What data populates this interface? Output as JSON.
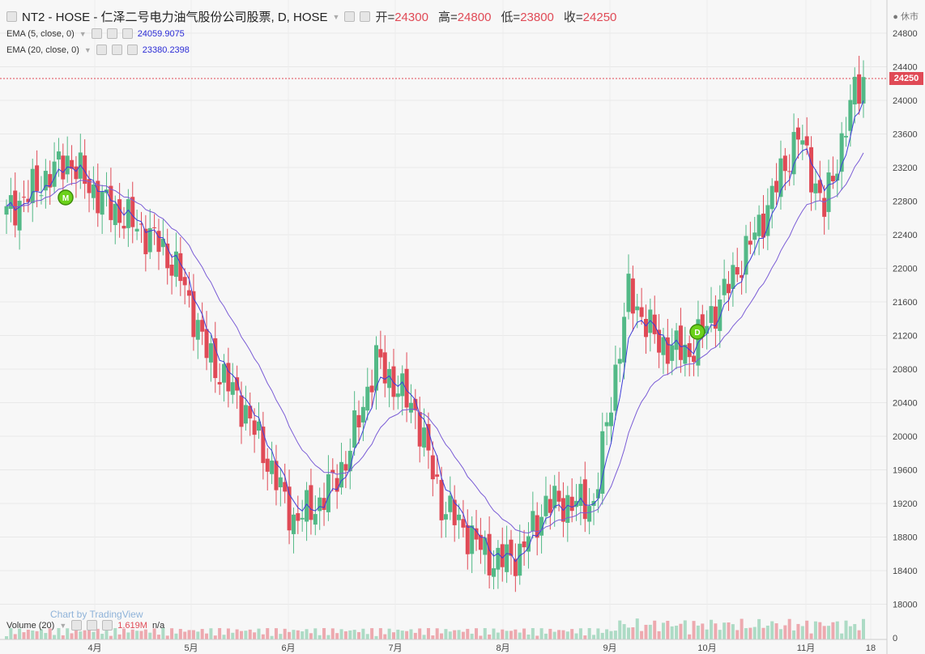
{
  "title": {
    "symbol": "NT2 - HOSE - 仁泽二号电力油气股份公司股票, D, HOSE",
    "open_label": "开=",
    "open": "24300",
    "high_label": "高=",
    "high": "24800",
    "low_label": "低=",
    "low": "23800",
    "close_label": "收=",
    "close": "24250"
  },
  "status_text": "休市",
  "indicators": {
    "ema5": {
      "label": "EMA (5, close, 0)",
      "value": "24059.9075"
    },
    "ema20": {
      "label": "EMA (20, close, 0)",
      "value": "23380.2398"
    },
    "volume": {
      "label": "Volume (20)",
      "value": "1.619M",
      "extra": "n/a"
    }
  },
  "watermark": "Chart by TradingView",
  "last_price_tag": "24250",
  "markers": [
    {
      "label": "M",
      "month": "4月"
    },
    {
      "label": "D",
      "month": "10月"
    }
  ],
  "colors": {
    "up": "#53b987",
    "down": "#e04a56",
    "ema5": "#3d3dd8",
    "ema20": "#7a5cd6",
    "marker": "#6bd11a"
  },
  "chart_data": {
    "type": "candlestick",
    "y_ticks": [
      "24800",
      "24400",
      "24000",
      "23600",
      "23200",
      "22800",
      "22400",
      "22000",
      "21600",
      "21200",
      "20800",
      "20400",
      "20000",
      "19600",
      "19200",
      "18800",
      "18400",
      "18000"
    ],
    "x_ticks": [
      "4月",
      "5月",
      "6月",
      "7月",
      "8月",
      "9月",
      "10月",
      "11月",
      "18"
    ],
    "volume_tick": "0",
    "ylim": [
      17900,
      24900
    ],
    "grid": true
  }
}
